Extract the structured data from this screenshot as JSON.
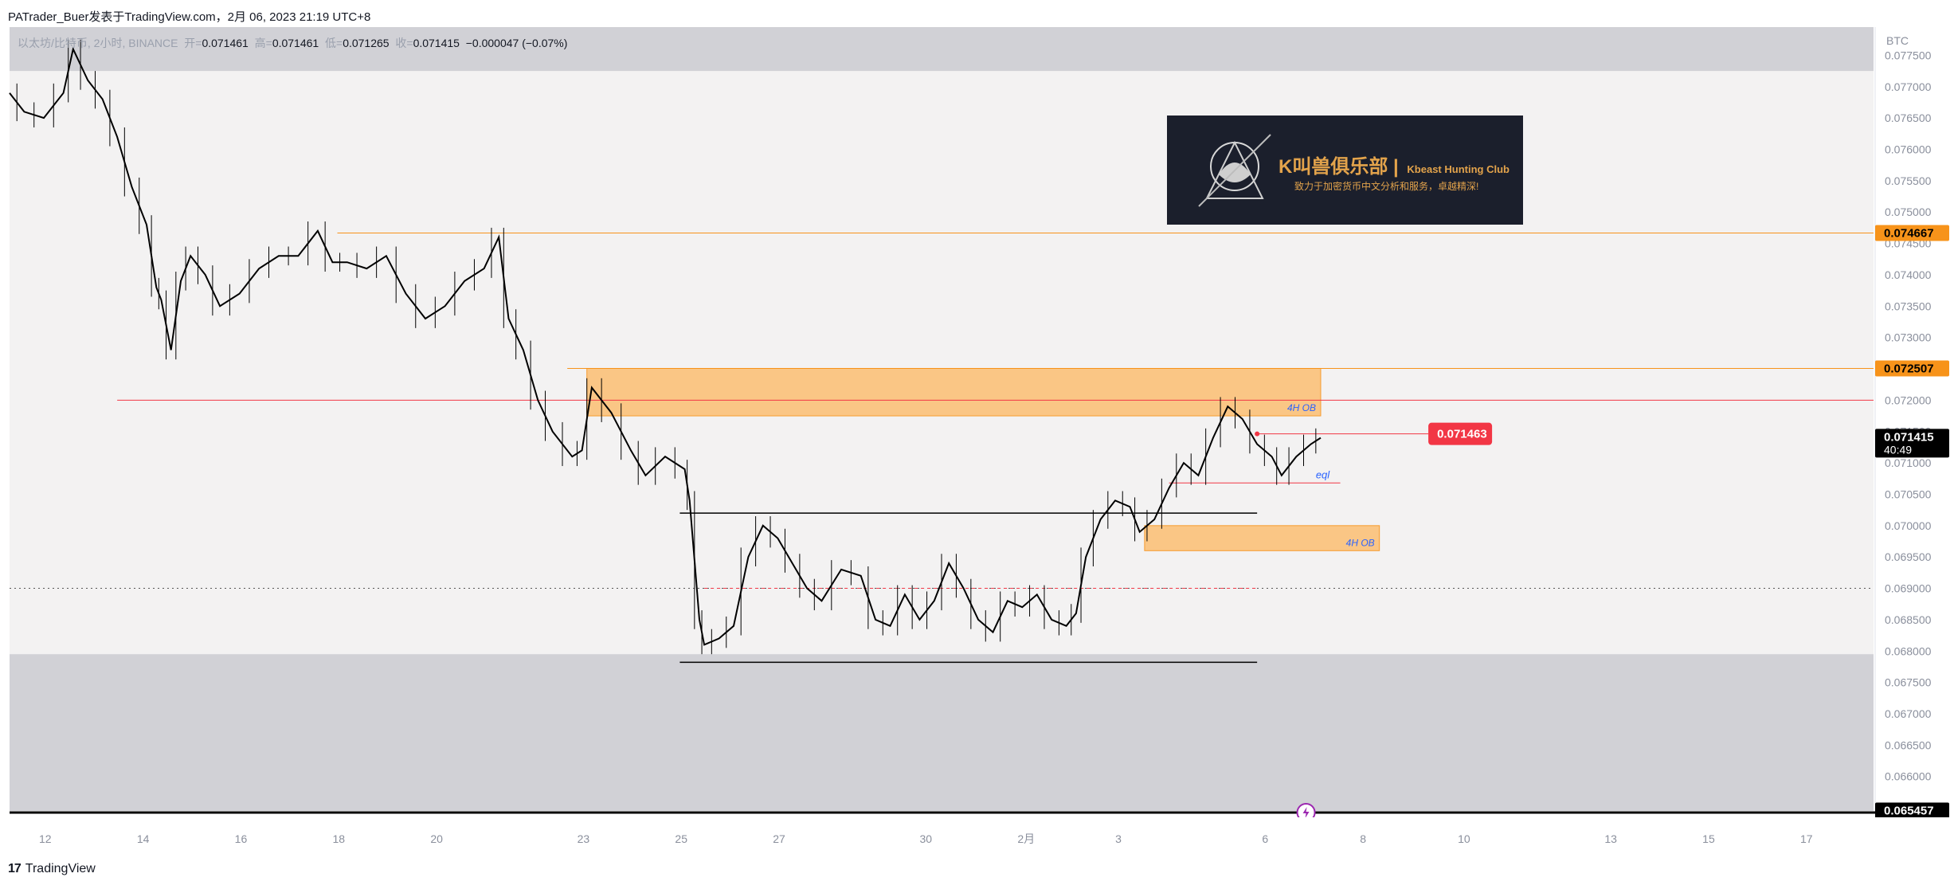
{
  "header": {
    "caption": "PATrader_Buer发表于TradingView.com，2月 06, 2023 21:19 UTC+8"
  },
  "legend": {
    "symbol": "以太坊/比特币, 2小时, BINANCE",
    "open_label": "开=",
    "open": "0.071461",
    "high_label": "高=",
    "high": "0.071461",
    "low_label": "低=",
    "low": "0.071265",
    "close_label": "收=",
    "close": "0.071415",
    "change": "−0.000047 (−0.07%)"
  },
  "footer": {
    "brand": "TradingView",
    "logo_mark": "17"
  },
  "logo_box": {
    "title": "K叫兽俱乐部",
    "title_en": "Kbeast Hunting Club",
    "subtitle": "致力于加密货币中文分析和服务，卓越精深!"
  },
  "colors": {
    "orange": "#f7931a",
    "zone_fill": "#fbc27a",
    "red": "#f23645",
    "grey_band": "#d1d1d6",
    "mid_band": "#f3f2f2",
    "candle": "#000000"
  },
  "chart_data": {
    "type": "line",
    "title": "",
    "xlabel": "",
    "ylabel": "",
    "currency_label": "BTC",
    "ylim": [
      0.06545,
      0.07795
    ],
    "y_ticks": [
      "0.077500",
      "0.077000",
      "0.076500",
      "0.076000",
      "0.075500",
      "0.075000",
      "0.074500",
      "0.074000",
      "0.073500",
      "0.073000",
      "0.072500",
      "0.072000",
      "0.071500",
      "0.071000",
      "0.070500",
      "0.070000",
      "0.069500",
      "0.069000",
      "0.068500",
      "0.068000",
      "0.067500",
      "0.067000",
      "0.066500",
      "0.066000"
    ],
    "x_ticks": [
      "12",
      "14",
      "16",
      "18",
      "20",
      "23",
      "25",
      "27",
      "30",
      "2月",
      "3",
      "6",
      "8",
      "10",
      "13",
      "15",
      "17"
    ],
    "x_tick_pos": [
      0,
      2,
      4,
      6,
      8,
      11,
      13,
      15,
      18,
      20,
      22,
      25,
      27,
      29,
      32,
      34,
      36
    ],
    "x_range": [
      -0.7,
      37.4
    ],
    "series": [
      {
        "values": [
          {
            "x": -0.7,
            "y": 0.0769
          },
          {
            "x": -0.4,
            "y": 0.0766
          },
          {
            "x": 0.0,
            "y": 0.0765
          },
          {
            "x": 0.4,
            "y": 0.0769
          },
          {
            "x": 0.6,
            "y": 0.0776
          },
          {
            "x": 0.9,
            "y": 0.0771
          },
          {
            "x": 1.2,
            "y": 0.0768
          },
          {
            "x": 1.5,
            "y": 0.0762
          },
          {
            "x": 1.8,
            "y": 0.0754
          },
          {
            "x": 2.1,
            "y": 0.0748
          },
          {
            "x": 2.3,
            "y": 0.0738
          },
          {
            "x": 2.4,
            "y": 0.0736
          },
          {
            "x": 2.6,
            "y": 0.0728
          },
          {
            "x": 2.8,
            "y": 0.0739
          },
          {
            "x": 3.0,
            "y": 0.0743
          },
          {
            "x": 3.3,
            "y": 0.074
          },
          {
            "x": 3.6,
            "y": 0.0735
          },
          {
            "x": 4.0,
            "y": 0.0737
          },
          {
            "x": 4.4,
            "y": 0.0741
          },
          {
            "x": 4.8,
            "y": 0.0743
          },
          {
            "x": 5.2,
            "y": 0.0743
          },
          {
            "x": 5.6,
            "y": 0.0747
          },
          {
            "x": 5.9,
            "y": 0.0742
          },
          {
            "x": 6.2,
            "y": 0.0742
          },
          {
            "x": 6.6,
            "y": 0.0741
          },
          {
            "x": 7.0,
            "y": 0.0743
          },
          {
            "x": 7.4,
            "y": 0.0737
          },
          {
            "x": 7.8,
            "y": 0.0733
          },
          {
            "x": 8.2,
            "y": 0.0735
          },
          {
            "x": 8.6,
            "y": 0.0739
          },
          {
            "x": 9.0,
            "y": 0.0741
          },
          {
            "x": 9.3,
            "y": 0.0746
          },
          {
            "x": 9.5,
            "y": 0.0733
          },
          {
            "x": 9.8,
            "y": 0.0728
          },
          {
            "x": 10.1,
            "y": 0.072
          },
          {
            "x": 10.4,
            "y": 0.0715
          },
          {
            "x": 10.8,
            "y": 0.0711
          },
          {
            "x": 11.0,
            "y": 0.0712
          },
          {
            "x": 11.2,
            "y": 0.0722
          },
          {
            "x": 11.6,
            "y": 0.0718
          },
          {
            "x": 12.0,
            "y": 0.0712
          },
          {
            "x": 12.3,
            "y": 0.0708
          },
          {
            "x": 12.7,
            "y": 0.0711
          },
          {
            "x": 13.1,
            "y": 0.0709
          },
          {
            "x": 13.2,
            "y": 0.0704
          },
          {
            "x": 13.4,
            "y": 0.0685
          },
          {
            "x": 13.5,
            "y": 0.0681
          },
          {
            "x": 13.8,
            "y": 0.0682
          },
          {
            "x": 14.1,
            "y": 0.0684
          },
          {
            "x": 14.4,
            "y": 0.0695
          },
          {
            "x": 14.7,
            "y": 0.07
          },
          {
            "x": 15.0,
            "y": 0.0698
          },
          {
            "x": 15.3,
            "y": 0.0694
          },
          {
            "x": 15.6,
            "y": 0.069
          },
          {
            "x": 15.9,
            "y": 0.0688
          },
          {
            "x": 16.3,
            "y": 0.0693
          },
          {
            "x": 16.7,
            "y": 0.0692
          },
          {
            "x": 17.0,
            "y": 0.0685
          },
          {
            "x": 17.3,
            "y": 0.0684
          },
          {
            "x": 17.6,
            "y": 0.0689
          },
          {
            "x": 17.9,
            "y": 0.0685
          },
          {
            "x": 18.2,
            "y": 0.0688
          },
          {
            "x": 18.5,
            "y": 0.0694
          },
          {
            "x": 18.8,
            "y": 0.069
          },
          {
            "x": 19.1,
            "y": 0.0685
          },
          {
            "x": 19.4,
            "y": 0.0683
          },
          {
            "x": 19.7,
            "y": 0.0688
          },
          {
            "x": 20.0,
            "y": 0.0687
          },
          {
            "x": 20.3,
            "y": 0.0689
          },
          {
            "x": 20.6,
            "y": 0.0685
          },
          {
            "x": 20.9,
            "y": 0.0684
          },
          {
            "x": 21.1,
            "y": 0.0686
          },
          {
            "x": 21.3,
            "y": 0.0695
          },
          {
            "x": 21.6,
            "y": 0.0701
          },
          {
            "x": 21.9,
            "y": 0.0704
          },
          {
            "x": 22.2,
            "y": 0.0703
          },
          {
            "x": 22.4,
            "y": 0.0699
          },
          {
            "x": 22.7,
            "y": 0.0701
          },
          {
            "x": 23.0,
            "y": 0.0706
          },
          {
            "x": 23.3,
            "y": 0.071
          },
          {
            "x": 23.6,
            "y": 0.0708
          },
          {
            "x": 23.9,
            "y": 0.0714
          },
          {
            "x": 24.2,
            "y": 0.0719
          },
          {
            "x": 24.5,
            "y": 0.0717
          },
          {
            "x": 24.8,
            "y": 0.0713
          },
          {
            "x": 25.1,
            "y": 0.0711
          },
          {
            "x": 25.3,
            "y": 0.0708
          },
          {
            "x": 25.6,
            "y": 0.0711
          },
          {
            "x": 25.9,
            "y": 0.0713
          },
          {
            "x": 26.1,
            "y": 0.0714
          }
        ]
      }
    ],
    "price_tags": [
      {
        "value": 0.074667,
        "label": "0.074667",
        "style": "orange"
      },
      {
        "value": 0.072507,
        "label": "0.072507",
        "style": "orange"
      },
      {
        "value": 0.071415,
        "label": "0.071415",
        "extra": "40:49",
        "style": "current"
      },
      {
        "value": 0.065457,
        "label": "0.065457",
        "style": "current"
      }
    ],
    "alert_tag": {
      "value": 0.071463,
      "label": "0.071463"
    },
    "zones": [
      {
        "x1": 11.1,
        "x2": 26.1,
        "y1": 0.072507,
        "y2": 0.07175,
        "label": "4H OB"
      },
      {
        "x1": 22.5,
        "x2": 27.3,
        "y1": 0.07,
        "y2": 0.0696,
        "label": "4H OB"
      }
    ],
    "eql_label": "eql",
    "band_levels": {
      "upper": 0.07725,
      "lower": 0.06795
    }
  }
}
